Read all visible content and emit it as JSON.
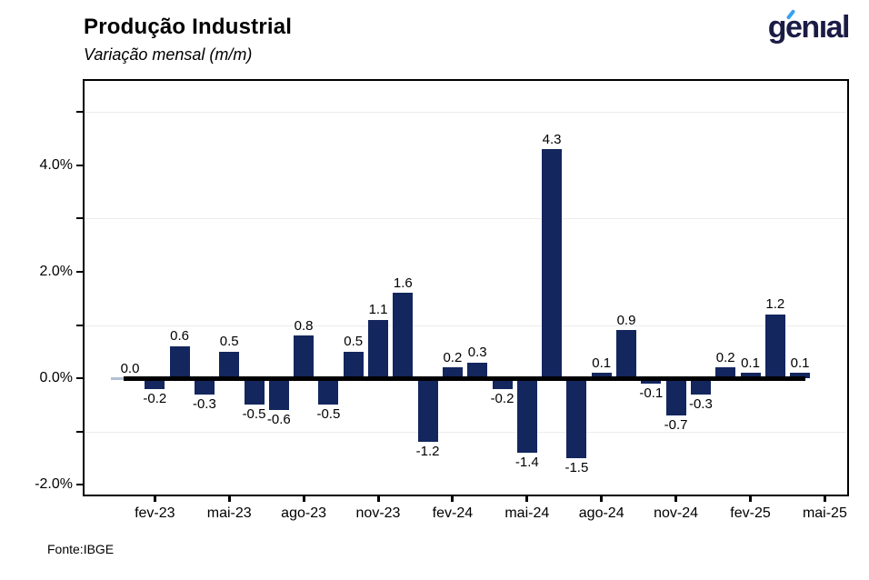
{
  "header": {
    "title": "Produção Industrial",
    "subtitle": "Variação mensal (m/m)"
  },
  "logo": {
    "text": "genıal",
    "color": "#1b1c45",
    "accent_color": "#35a1f3"
  },
  "footer": {
    "source": "Fonte:IBGE"
  },
  "chart_data": {
    "type": "bar",
    "title": "Produção Industrial",
    "subtitle": "Variação mensal (m/m)",
    "values": [
      0.0,
      -0.2,
      0.6,
      -0.3,
      0.5,
      -0.5,
      -0.6,
      0.8,
      -0.5,
      0.5,
      1.1,
      1.6,
      -1.2,
      0.2,
      0.3,
      -0.2,
      -1.4,
      4.3,
      -1.5,
      0.1,
      0.9,
      -0.1,
      -0.7,
      -0.3,
      0.2,
      0.1,
      1.2,
      0.1
    ],
    "data_labels": [
      "0.0",
      "-0.2",
      "0.6",
      "-0.3",
      "0.5",
      "-0.5",
      "-0.6",
      "0.8",
      "-0.5",
      "0.5",
      "1.1",
      "1.6",
      "-1.2",
      "0.2",
      "0.3",
      "-0.2",
      "-1.4",
      "4.3",
      "-1.5",
      "0.1",
      "0.9",
      "-0.1",
      "-0.7",
      "-0.3",
      "0.2",
      "0.1",
      "1.2",
      "0.1"
    ],
    "x_tick_labels": [
      "fev-23",
      "mai-23",
      "ago-23",
      "nov-23",
      "fev-24",
      "mai-24",
      "ago-24",
      "nov-24",
      "fev-25",
      "mai-25"
    ],
    "x_tick_every": 3,
    "x_first_tick_bar_index": 1,
    "y_ticks": [
      {
        "value": -2,
        "label": "-2.0%"
      },
      {
        "value": 0,
        "label": "0.0%"
      },
      {
        "value": 2,
        "label": "2.0%"
      },
      {
        "value": 4,
        "label": "4.0%"
      }
    ],
    "y_minor_tick_values": [
      -2,
      -1,
      0,
      1,
      2,
      3,
      4,
      5
    ],
    "gridline_values": [
      -1,
      1,
      3,
      5
    ],
    "ylim": [
      -2.2,
      5.6
    ],
    "grid": "minor-horizontal-only",
    "legend": "none",
    "bar_color": "#13265e",
    "zero_value_bar_color": "#b3c0d4",
    "zero_line_color": "#000000",
    "grid_color": "#ececec"
  }
}
